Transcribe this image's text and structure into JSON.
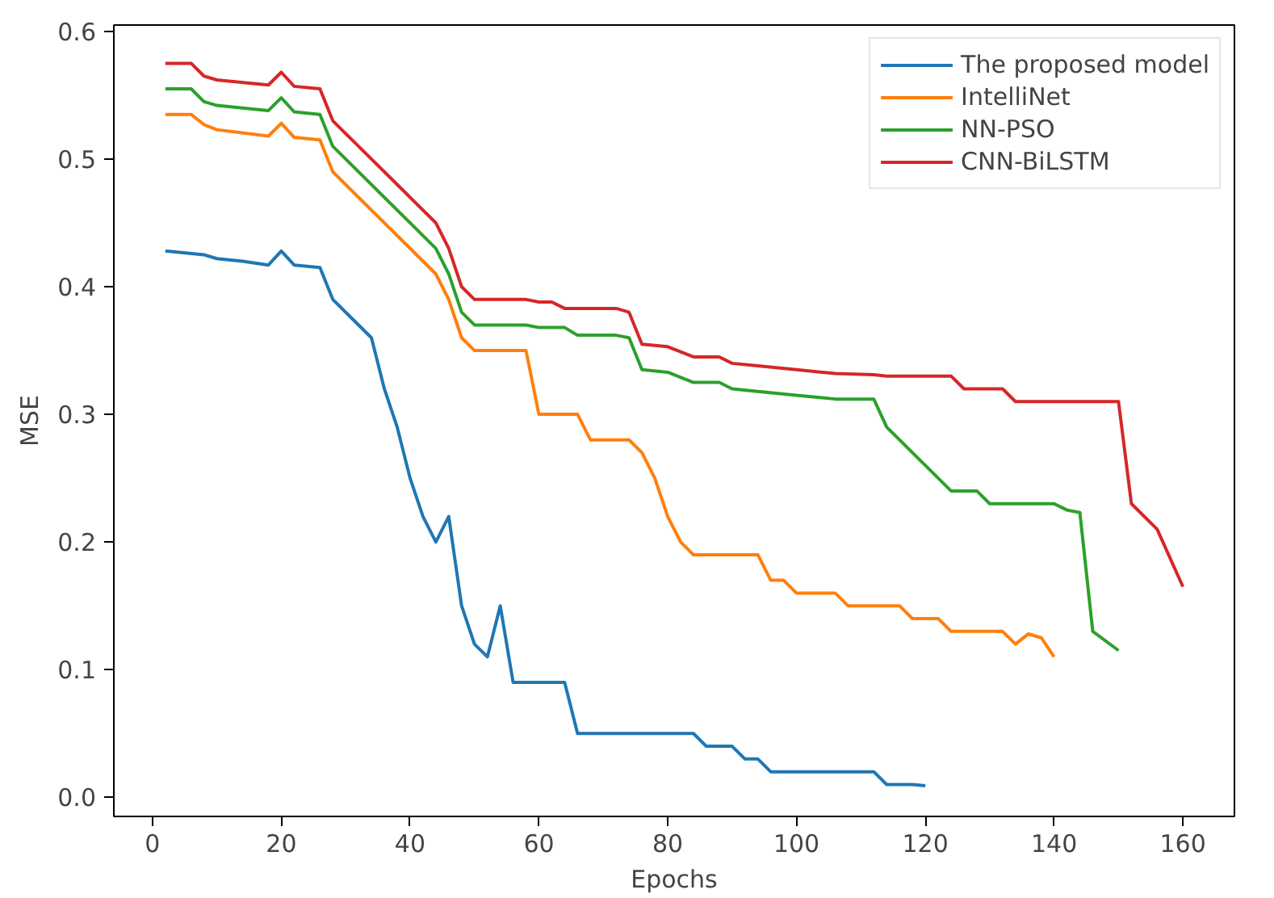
{
  "chart_data": {
    "type": "line",
    "xlabel": "Epochs",
    "ylabel": "MSE",
    "xlim": [
      -6,
      168
    ],
    "ylim": [
      -0.015,
      0.605
    ],
    "xticks": [
      0,
      20,
      40,
      60,
      80,
      100,
      120,
      140,
      160
    ],
    "yticks": [
      {
        "value": 0,
        "label": "0.0"
      },
      {
        "value": 0.1,
        "label": "0.1"
      },
      {
        "value": 0.2,
        "label": "0.2"
      },
      {
        "value": 0.3,
        "label": "0.3"
      },
      {
        "value": 0.4,
        "label": "0.4"
      },
      {
        "value": 0.5,
        "label": "0.5"
      },
      {
        "value": 0.6,
        "label": "0.6"
      }
    ],
    "grid": false,
    "legend": "top right",
    "line_style": "solid",
    "series": [
      {
        "name": "The proposed model",
        "color": "#1f77b4",
        "x": [
          2,
          8,
          10,
          14,
          18,
          20,
          22,
          26,
          28,
          34,
          36,
          38,
          40,
          42,
          44,
          46,
          48,
          50,
          52,
          54,
          56,
          64,
          66,
          84,
          86,
          90,
          92,
          94,
          96,
          112,
          114,
          118,
          120
        ],
        "values": [
          0.428,
          0.425,
          0.422,
          0.42,
          0.417,
          0.428,
          0.417,
          0.415,
          0.39,
          0.36,
          0.32,
          0.29,
          0.25,
          0.22,
          0.2,
          0.22,
          0.15,
          0.12,
          0.11,
          0.15,
          0.09,
          0.09,
          0.05,
          0.05,
          0.04,
          0.04,
          0.03,
          0.03,
          0.02,
          0.02,
          0.01,
          0.01,
          0.009
        ]
      },
      {
        "name": "IntelliNet",
        "color": "#ff7f0e",
        "x": [
          2,
          6,
          8,
          10,
          18,
          20,
          22,
          26,
          28,
          44,
          46,
          48,
          50,
          58,
          60,
          66,
          68,
          74,
          76,
          78,
          80,
          82,
          84,
          94,
          96,
          98,
          100,
          106,
          108,
          116,
          118,
          122,
          124,
          132,
          134,
          136,
          138,
          140
        ],
        "values": [
          0.535,
          0.535,
          0.527,
          0.523,
          0.518,
          0.528,
          0.517,
          0.515,
          0.49,
          0.41,
          0.39,
          0.36,
          0.35,
          0.35,
          0.3,
          0.3,
          0.28,
          0.28,
          0.27,
          0.25,
          0.22,
          0.2,
          0.19,
          0.19,
          0.17,
          0.17,
          0.16,
          0.16,
          0.15,
          0.15,
          0.14,
          0.14,
          0.13,
          0.13,
          0.12,
          0.128,
          0.125,
          0.11
        ]
      },
      {
        "name": "NN-PSO",
        "color": "#2ca02c",
        "x": [
          2,
          6,
          8,
          10,
          18,
          20,
          22,
          26,
          28,
          44,
          46,
          48,
          50,
          58,
          60,
          64,
          66,
          72,
          74,
          76,
          80,
          84,
          88,
          90,
          94,
          100,
          106,
          112,
          114,
          124,
          128,
          130,
          140,
          142,
          144,
          146,
          150
        ],
        "values": [
          0.555,
          0.555,
          0.545,
          0.542,
          0.538,
          0.548,
          0.537,
          0.535,
          0.51,
          0.43,
          0.41,
          0.38,
          0.37,
          0.37,
          0.368,
          0.368,
          0.362,
          0.362,
          0.36,
          0.335,
          0.333,
          0.325,
          0.325,
          0.32,
          0.318,
          0.315,
          0.312,
          0.312,
          0.29,
          0.24,
          0.24,
          0.23,
          0.23,
          0.225,
          0.223,
          0.13,
          0.115
        ]
      },
      {
        "name": "CNN-BiLSTM",
        "color": "#d62728",
        "x": [
          2,
          6,
          8,
          10,
          18,
          20,
          22,
          26,
          28,
          44,
          46,
          48,
          50,
          58,
          60,
          62,
          64,
          72,
          74,
          76,
          80,
          84,
          88,
          90,
          94,
          100,
          106,
          112,
          114,
          124,
          126,
          132,
          134,
          150,
          152,
          156,
          160
        ],
        "values": [
          0.575,
          0.575,
          0.565,
          0.562,
          0.558,
          0.568,
          0.557,
          0.555,
          0.53,
          0.45,
          0.43,
          0.4,
          0.39,
          0.39,
          0.388,
          0.388,
          0.383,
          0.383,
          0.38,
          0.355,
          0.353,
          0.345,
          0.345,
          0.34,
          0.338,
          0.335,
          0.332,
          0.331,
          0.33,
          0.33,
          0.32,
          0.32,
          0.31,
          0.31,
          0.23,
          0.21,
          0.165
        ]
      }
    ]
  }
}
